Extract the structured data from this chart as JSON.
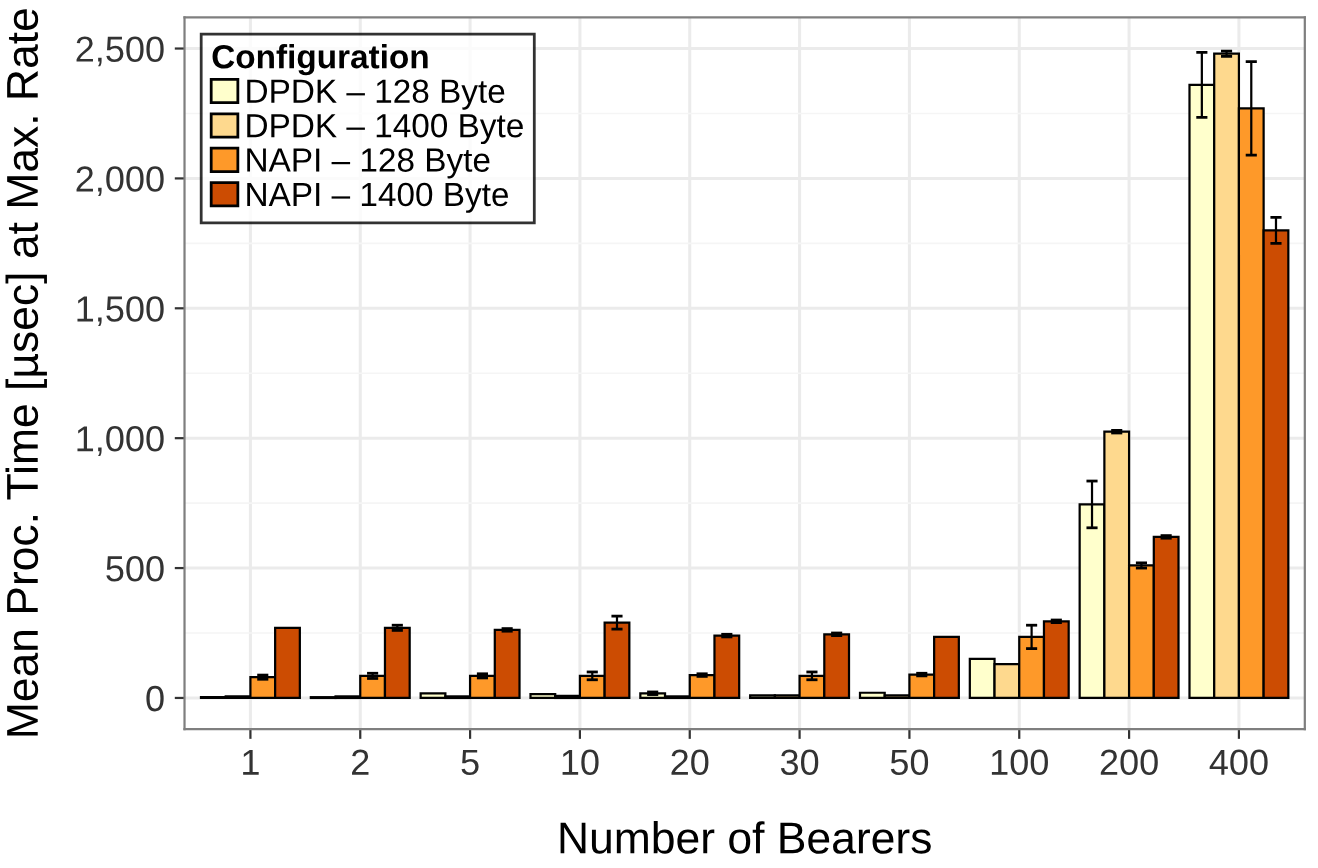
{
  "chart_data": {
    "type": "bar",
    "xlabel": "Number of Bearers",
    "ylabel": "Mean Proc. Time [µsec] at Max. Rate",
    "legend_title": "Configuration",
    "legend": "top left",
    "grid": true,
    "categories": [
      "1",
      "2",
      "5",
      "10",
      "20",
      "30",
      "50",
      "100",
      "200",
      "400"
    ],
    "ylim": [
      -120,
      2620
    ],
    "yticks": [
      {
        "value": 0,
        "label": "0"
      },
      {
        "value": 500,
        "label": "500"
      },
      {
        "value": 1000,
        "label": "1,000"
      },
      {
        "value": 1500,
        "label": "1,500"
      },
      {
        "value": 2000,
        "label": "2,000"
      },
      {
        "value": 2500,
        "label": "2,500"
      }
    ],
    "series": [
      {
        "name": "DPDK – 128 Byte",
        "color": "#ffffcc",
        "values": [
          3,
          3,
          18,
          15,
          18,
          10,
          20,
          150,
          745,
          2360
        ],
        "errors": [
          null,
          null,
          null,
          null,
          5,
          null,
          null,
          null,
          90,
          125
        ]
      },
      {
        "name": "DPDK – 1400 Byte",
        "color": "#fed98e",
        "values": [
          6,
          6,
          6,
          8,
          6,
          10,
          10,
          130,
          1025,
          2480
        ],
        "errors": [
          null,
          null,
          null,
          null,
          null,
          null,
          null,
          null,
          5,
          10
        ]
      },
      {
        "name": "NAPI – 128 Byte",
        "color": "#fe9929",
        "values": [
          80,
          85,
          85,
          85,
          88,
          85,
          90,
          235,
          510,
          2270
        ],
        "errors": [
          8,
          10,
          8,
          15,
          5,
          15,
          5,
          45,
          10,
          180
        ]
      },
      {
        "name": "NAPI – 1400 Byte",
        "color": "#cc4c02",
        "values": [
          270,
          270,
          262,
          290,
          240,
          245,
          235,
          295,
          620,
          1800
        ],
        "errors": [
          null,
          10,
          5,
          25,
          5,
          5,
          null,
          5,
          5,
          50
        ]
      }
    ]
  }
}
